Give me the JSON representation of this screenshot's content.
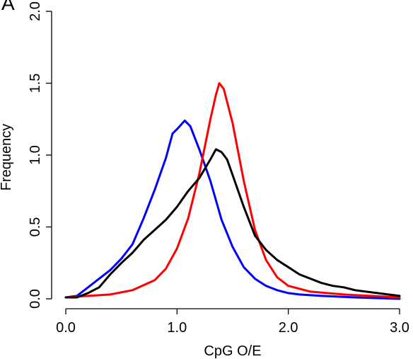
{
  "panel_label": "A",
  "chart_data": {
    "type": "line",
    "title": "",
    "xlabel": "CpG O/E",
    "ylabel": "Frequency",
    "xlim": [
      0.0,
      3.0
    ],
    "ylim": [
      0.0,
      2.0
    ],
    "x_ticks": [
      0.0,
      1.0,
      2.0,
      3.0
    ],
    "x_tick_labels": [
      "0.0",
      "1.0",
      "2.0",
      "3.0"
    ],
    "y_ticks": [
      0.0,
      0.5,
      1.0,
      1.5,
      2.0
    ],
    "y_tick_labels": [
      "0.0",
      "0.5",
      "1.0",
      "1.5",
      "2.0"
    ],
    "grid": false,
    "legend": "none",
    "series": [
      {
        "color": "#0000ff",
        "points": [
          [
            0.0,
            0.01
          ],
          [
            0.1,
            0.02
          ],
          [
            0.2,
            0.08
          ],
          [
            0.3,
            0.14
          ],
          [
            0.4,
            0.2
          ],
          [
            0.5,
            0.28
          ],
          [
            0.6,
            0.38
          ],
          [
            0.7,
            0.56
          ],
          [
            0.8,
            0.76
          ],
          [
            0.9,
            0.98
          ],
          [
            0.96,
            1.15
          ],
          [
            1.0,
            1.18
          ],
          [
            1.07,
            1.24
          ],
          [
            1.12,
            1.2
          ],
          [
            1.2,
            1.04
          ],
          [
            1.3,
            0.82
          ],
          [
            1.4,
            0.55
          ],
          [
            1.5,
            0.36
          ],
          [
            1.6,
            0.22
          ],
          [
            1.7,
            0.14
          ],
          [
            1.8,
            0.09
          ],
          [
            1.9,
            0.06
          ],
          [
            2.0,
            0.04
          ],
          [
            2.1,
            0.03
          ],
          [
            2.3,
            0.02
          ],
          [
            2.6,
            0.01
          ],
          [
            3.0,
            0.0
          ]
        ]
      },
      {
        "color": "#ff0000",
        "points": [
          [
            0.0,
            0.01
          ],
          [
            0.2,
            0.02
          ],
          [
            0.4,
            0.03
          ],
          [
            0.6,
            0.06
          ],
          [
            0.8,
            0.13
          ],
          [
            0.9,
            0.21
          ],
          [
            1.0,
            0.35
          ],
          [
            1.1,
            0.56
          ],
          [
            1.2,
            0.87
          ],
          [
            1.3,
            1.25
          ],
          [
            1.35,
            1.42
          ],
          [
            1.38,
            1.5
          ],
          [
            1.42,
            1.46
          ],
          [
            1.5,
            1.22
          ],
          [
            1.6,
            0.82
          ],
          [
            1.7,
            0.48
          ],
          [
            1.8,
            0.27
          ],
          [
            1.9,
            0.15
          ],
          [
            2.0,
            0.09
          ],
          [
            2.2,
            0.05
          ],
          [
            2.5,
            0.03
          ],
          [
            3.0,
            0.01
          ]
        ]
      },
      {
        "color": "#000000",
        "points": [
          [
            0.0,
            0.01
          ],
          [
            0.1,
            0.01
          ],
          [
            0.2,
            0.04
          ],
          [
            0.3,
            0.08
          ],
          [
            0.4,
            0.17
          ],
          [
            0.5,
            0.25
          ],
          [
            0.6,
            0.32
          ],
          [
            0.7,
            0.41
          ],
          [
            0.8,
            0.48
          ],
          [
            0.9,
            0.55
          ],
          [
            1.0,
            0.64
          ],
          [
            1.1,
            0.75
          ],
          [
            1.2,
            0.84
          ],
          [
            1.3,
            0.97
          ],
          [
            1.35,
            1.04
          ],
          [
            1.4,
            1.02
          ],
          [
            1.45,
            0.97
          ],
          [
            1.5,
            0.86
          ],
          [
            1.6,
            0.64
          ],
          [
            1.7,
            0.44
          ],
          [
            1.8,
            0.34
          ],
          [
            1.9,
            0.27
          ],
          [
            2.0,
            0.22
          ],
          [
            2.1,
            0.17
          ],
          [
            2.2,
            0.14
          ],
          [
            2.3,
            0.11
          ],
          [
            2.4,
            0.09
          ],
          [
            2.5,
            0.08
          ],
          [
            2.6,
            0.06
          ],
          [
            2.7,
            0.05
          ],
          [
            2.8,
            0.04
          ],
          [
            2.9,
            0.03
          ],
          [
            3.0,
            0.02
          ]
        ]
      }
    ]
  }
}
